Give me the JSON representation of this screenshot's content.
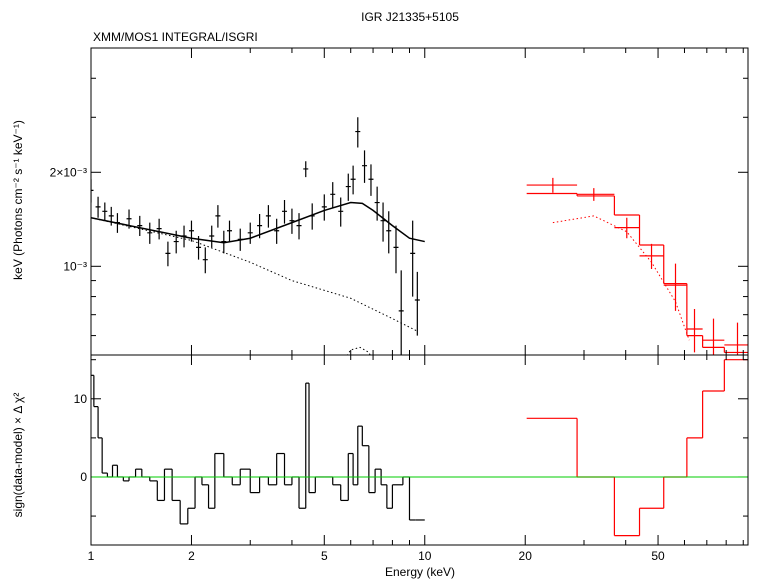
{
  "chart_data": [
    {
      "type": "spectrum",
      "title": "IGR J21335+5105",
      "subtitle": "XMM/MOS1 INTEGRAL/ISGRI",
      "y_label": "keV (Photons cm⁻² s⁻¹ keV⁻¹)",
      "log_x": true,
      "log_y": true,
      "xlim": [
        1,
        93
      ],
      "ylim": [
        0.00052,
        0.005
      ],
      "yticks": [
        {
          "value": 0.001,
          "label": "10⁻³"
        },
        {
          "value": 0.002,
          "label": "2×10⁻³"
        }
      ],
      "yminorticks": [
        0.0006,
        0.0007,
        0.0008,
        0.0009,
        0.003,
        0.004,
        0.005
      ],
      "series": [
        {
          "kind": "errorbar",
          "color": "#000000",
          "x": [
            1.0,
            1.05,
            1.1,
            1.15,
            1.2,
            1.3,
            1.4,
            1.5,
            1.6,
            1.7,
            1.8,
            1.9,
            2.0,
            2.1,
            2.2,
            2.3,
            2.4,
            2.5,
            2.6,
            2.8,
            3.0,
            3.2,
            3.4,
            3.6,
            3.8,
            4.0,
            4.2,
            4.4,
            4.6,
            5.0,
            5.3,
            5.6,
            5.9,
            6.1,
            6.3,
            6.6,
            6.9,
            7.2,
            7.5,
            7.8,
            8.2,
            8.5,
            9.2,
            9.5
          ],
          "values": [
            0.00175,
            0.00155,
            0.0015,
            0.00145,
            0.00138,
            0.00142,
            0.00135,
            0.00128,
            0.00132,
            0.0011,
            0.0012,
            0.00125,
            0.0013,
            0.00115,
            0.00105,
            0.00125,
            0.00145,
            0.0012,
            0.0013,
            0.00122,
            0.00128,
            0.00135,
            0.00145,
            0.0013,
            0.0015,
            0.0014,
            0.00135,
            0.00205,
            0.00145,
            0.00155,
            0.0017,
            0.0015,
            0.0018,
            0.0019,
            0.0027,
            0.0021,
            0.0019,
            0.0016,
            0.0014,
            0.0013,
            0.00115,
            0.00072,
            0.0011,
            0.00078
          ],
          "yerr": [
            0.00015,
            0.00012,
            0.0001,
            0.0001,
            0.0001,
            0.0001,
            0.0001,
            0.0001,
            0.0001,
            0.0001,
            0.0001,
            0.0001,
            0.0001,
            0.0001,
            0.0001,
            0.0001,
            0.00012,
            0.0001,
            0.0001,
            0.0001,
            0.0001,
            0.00012,
            0.00012,
            0.00012,
            0.00013,
            0.00013,
            0.00013,
            0.00012,
            0.00014,
            0.00015,
            0.00016,
            0.00016,
            0.00018,
            0.0002,
            0.0003,
            0.00025,
            0.00022,
            0.0002,
            0.0002,
            0.0002,
            0.0002,
            0.00025,
            0.0003,
            0.00018
          ]
        },
        {
          "kind": "line",
          "color": "#000000",
          "dashed": false,
          "x": [
            1,
            2,
            2.5,
            3,
            4,
            5,
            6,
            6.5,
            7,
            8,
            9,
            10
          ],
          "values": [
            0.00143,
            0.00123,
            0.00119,
            0.00123,
            0.00138,
            0.00151,
            0.0016,
            0.00159,
            0.00151,
            0.00135,
            0.00123,
            0.0012
          ]
        },
        {
          "kind": "line",
          "color": "#000000",
          "dashed": true,
          "x": [
            1,
            2,
            3,
            4,
            6,
            8,
            9.5
          ],
          "values": [
            0.00143,
            0.00121,
            0.00103,
            0.0009,
            0.00079,
            0.00068,
            0.00062
          ]
        },
        {
          "kind": "line",
          "color": "#000000",
          "dashed": true,
          "x": [
            5.6,
            6.0,
            6.4,
            6.8,
            7.2
          ],
          "values": [
            0.00048,
            0.00054,
            0.00055,
            0.00053,
            0.00047
          ]
        },
        {
          "kind": "errorbar",
          "color": "#ff0000",
          "x": [
            24.2,
            32.1,
            40.3,
            47.8,
            56.4,
            64.3,
            73.3,
            86.5
          ],
          "x_low": [
            20.2,
            28.6,
            37,
            44,
            52,
            61,
            68,
            79
          ],
          "x_high": [
            28.6,
            37,
            44,
            52,
            61,
            68,
            79,
            93
          ],
          "values": [
            0.00182,
            0.0017,
            0.00133,
            0.00108,
            0.00087,
            0.00063,
            0.00058,
            0.00056
          ],
          "yerr": [
            0.0001,
            8e-05,
            0.0001,
            0.0001,
            0.00015,
            0.0001,
            0.0001,
            0.0001
          ]
        },
        {
          "kind": "step",
          "color": "#ff0000",
          "bins": [
            20.2,
            28.6,
            37,
            44,
            52,
            61,
            68,
            79,
            93
          ],
          "values": [
            0.00171,
            0.00168,
            0.00146,
            0.00117,
            0.00088,
            0.0006,
            0.00055,
            0.00053
          ]
        },
        {
          "kind": "line",
          "color": "#ff0000",
          "dashed": true,
          "x": [
            24.2,
            32.1,
            40.3,
            47.8,
            56.4,
            62
          ],
          "values": [
            0.00138,
            0.00145,
            0.00129,
            0.00103,
            0.00077,
            0.00058
          ]
        }
      ]
    },
    {
      "type": "residuals",
      "y_label": "sign(data-model) × Δ χ²",
      "x_label": "Energy (keV)",
      "log_x": true,
      "log_y": false,
      "xlim": [
        1,
        93
      ],
      "ylim": [
        -8.7,
        15.6
      ],
      "xticks": [
        1,
        2,
        5,
        10,
        20,
        50
      ],
      "xminorticks": [
        3,
        4,
        6,
        7,
        8,
        9,
        30,
        40,
        60,
        70,
        80,
        90
      ],
      "yticks": [
        0,
        10
      ],
      "yminorticks": [
        -5,
        5,
        15
      ],
      "reference_line": {
        "value": 0,
        "color": "#00cc00"
      },
      "series": [
        {
          "kind": "step",
          "color": "#000000",
          "bins": [
            1.0,
            1.02,
            1.05,
            1.08,
            1.12,
            1.16,
            1.2,
            1.25,
            1.3,
            1.36,
            1.42,
            1.5,
            1.58,
            1.66,
            1.75,
            1.85,
            1.95,
            2.05,
            2.15,
            2.25,
            2.35,
            2.5,
            2.65,
            2.8,
            3.0,
            3.2,
            3.4,
            3.6,
            3.8,
            4.0,
            4.2,
            4.4,
            4.5,
            4.7,
            5.0,
            5.3,
            5.6,
            5.9,
            6.1,
            6.3,
            6.5,
            6.8,
            7.1,
            7.4,
            7.7,
            8.0,
            8.6,
            9.0,
            9.4,
            10.0
          ],
          "values": [
            13,
            9,
            5,
            0.5,
            0,
            1.5,
            0,
            -0.5,
            0,
            1,
            0,
            -0.5,
            -3,
            1,
            -3,
            -6,
            -4,
            0,
            -1,
            -4,
            3,
            0,
            -1,
            1,
            -2,
            0,
            -1,
            3,
            -1,
            0,
            -4,
            12,
            -2,
            0,
            0,
            -1,
            -3,
            3,
            -1,
            6.5,
            4,
            -2,
            1,
            -1,
            -4,
            -1,
            0,
            -5.5,
            -5.5
          ]
        },
        {
          "kind": "step",
          "color": "#ff0000",
          "bins": [
            20.2,
            28.6,
            37,
            44,
            52,
            61,
            68,
            79,
            93
          ],
          "values": [
            7.5,
            0,
            -7.5,
            -4,
            0,
            5,
            11,
            15
          ]
        }
      ]
    }
  ]
}
